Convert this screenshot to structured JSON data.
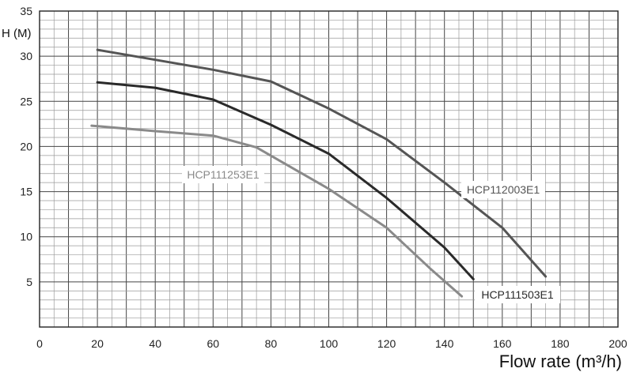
{
  "chart_data": {
    "type": "line",
    "ylabel": "H (M)",
    "xlabel": "Flow rate (m³/h)",
    "xlim": [
      0,
      200
    ],
    "ylim": [
      0,
      35
    ],
    "x_ticks": [
      "0",
      "20",
      "40",
      "60",
      "80",
      "100",
      "120",
      "140",
      "160",
      "180",
      "200"
    ],
    "y_ticks": [
      "5",
      "10",
      "15",
      "20",
      "25",
      "30",
      "35"
    ],
    "grid": true,
    "series": [
      {
        "name": "HCP112003E1",
        "color": "#555555",
        "points": [
          [
            20,
            30.7
          ],
          [
            40,
            29.6
          ],
          [
            60,
            28.5
          ],
          [
            80,
            27.2
          ],
          [
            100,
            24.2
          ],
          [
            120,
            20.8
          ],
          [
            140,
            16.0
          ],
          [
            160,
            11.0
          ],
          [
            175,
            5.6
          ]
        ]
      },
      {
        "name": "HCP111503E1",
        "color": "#2a2a2a",
        "points": [
          [
            20,
            27.1
          ],
          [
            40,
            26.5
          ],
          [
            60,
            25.2
          ],
          [
            80,
            22.4
          ],
          [
            100,
            19.2
          ],
          [
            120,
            14.3
          ],
          [
            140,
            8.8
          ],
          [
            150,
            5.3
          ]
        ]
      },
      {
        "name": "HCP111253E1",
        "color": "#8a8a8a",
        "points": [
          [
            18,
            22.3
          ],
          [
            40,
            21.7
          ],
          [
            60,
            21.2
          ],
          [
            75,
            19.9
          ],
          [
            100,
            15.3
          ],
          [
            120,
            11.0
          ],
          [
            135,
            6.5
          ],
          [
            146,
            3.4
          ]
        ]
      }
    ]
  }
}
